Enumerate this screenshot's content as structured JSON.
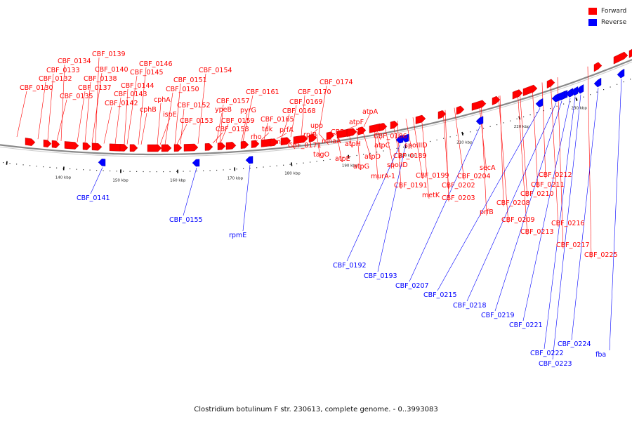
{
  "legend": [
    {
      "label": "Forward",
      "color": "#ff0000"
    },
    {
      "label": "Reverse",
      "color": "#0000ff"
    }
  ],
  "caption": "Clostridium botulinum F str. 230613, complete genome. - 0..3993083",
  "colors": {
    "forward": "#ff0000",
    "reverse": "#0000ff",
    "backbone": "#888888",
    "tick": "#000000"
  },
  "ticks": [
    "140 kbp",
    "150 kbp",
    "160 kbp",
    "170 kbp",
    "180 kbp",
    "190 kbp",
    "200 kbp",
    "210 kbp",
    "220 kbp",
    "230 kbp"
  ],
  "forward_genes": [
    "CBF_0130",
    "CBF_0132",
    "CBF_0133",
    "CBF_0134",
    "CBF_0135",
    "CBF_0137",
    "CBF_0138",
    "CBF_0139",
    "CBF_0140",
    "CBF_0142",
    "CBF_0143",
    "CBF_0144",
    "CBF_0145",
    "CBF_0146",
    "cphB",
    "cphA",
    "ispE",
    "CBF_0150",
    "CBF_0151",
    "CBF_0152",
    "CBF_0153",
    "CBF_0154",
    "ypeB",
    "CBF_0157",
    "CBF_0158",
    "CBF_0159",
    "pyrG",
    "rho",
    "CBF_0161",
    "tdk",
    "prmC",
    "CBF_0165",
    "prfA",
    "CBF_0168",
    "CBF_0169",
    "CBF_0170",
    "CBF_0171",
    "rpiB",
    "upp",
    "tagO",
    "mnaA",
    "CBF_0174",
    "atpE",
    "atpH",
    "atpF",
    "CBF_0178",
    "atpA",
    "atpG",
    "atpD",
    "atpC",
    "CBF_0186",
    "murA-1",
    "spoIID",
    "CBF_0189",
    "spoIIID",
    "CBF_0191",
    "CBF_0199",
    "metK",
    "CBF_0202",
    "CBF_0203",
    "CBF_0204",
    "secA",
    "prfB",
    "CBF_0208",
    "CBF_0209",
    "CBF_0210",
    "CBF_0211",
    "CBF_0212",
    "CBF_0213",
    "CBF_0216",
    "CBF_0217",
    "CBF_0225"
  ],
  "reverse_genes": [
    "CBF_0141",
    "CBF_0155",
    "rpmE",
    "CBF_0192",
    "CBF_0193",
    "CBF_0207",
    "CBF_0215",
    "CBF_0218",
    "CBF_0219",
    "CBF_0221",
    "CBF_0222",
    "CBF_0223",
    "CBF_0224",
    "fba"
  ]
}
